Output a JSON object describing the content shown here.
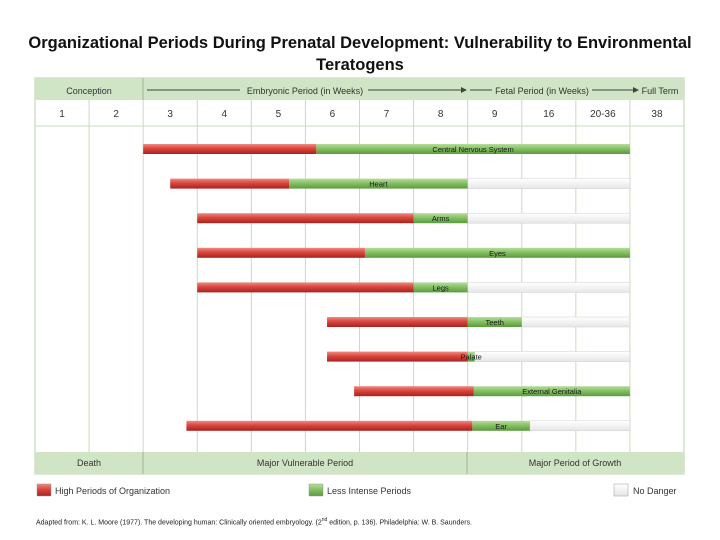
{
  "title": "Organizational Periods During Prenatal Development: Vulnerability to Environmental Teratogens",
  "header": {
    "conception": "Conception",
    "embryonic": "Embryonic Period (in Weeks)",
    "fetal": "Fetal Period (in Weeks)",
    "full_term": "Full Term"
  },
  "footer": {
    "death": "Death",
    "major_vulnerable": "Major Vulnerable Period",
    "major_growth": "Major Period of Growth"
  },
  "legend": {
    "high": "High Periods of Organization",
    "less": "Less Intense Periods",
    "none": "No Danger"
  },
  "source": {
    "before": "Adapted from: K. L. Moore (1977). The developing human: Clinically oriented embryology. (2",
    "sup": "nd",
    "after": " edition, p. 136). Philadelphia: W. B. Saunders."
  },
  "colors": {
    "header_bg": "#d0e4c6",
    "high": "#d33b36",
    "less": "#7fbf5e",
    "none": "#f2f2f2",
    "grid": "#c8dcc0"
  },
  "chart_data": {
    "type": "bar",
    "title": "Organizational Periods During Prenatal Development: Vulnerability to Environmental Teratogens",
    "columns": [
      "1",
      "2",
      "3",
      "4",
      "5",
      "6",
      "7",
      "8",
      "9",
      "16",
      "20-36",
      "38"
    ],
    "rows": [
      {
        "label": "Central Nervous System",
        "high": [
          3,
          6.2
        ],
        "less": [
          6.2,
          38
        ],
        "none": []
      },
      {
        "label": "Heart",
        "high": [
          3.5,
          5.7
        ],
        "less": [
          5.7,
          9
        ],
        "none": [
          9,
          38
        ]
      },
      {
        "label": "Arms",
        "high": [
          4,
          8
        ],
        "less": [
          8,
          9
        ],
        "none": [
          9,
          38
        ]
      },
      {
        "label": "Eyes",
        "high": [
          4,
          7.1
        ],
        "less": [
          7.1,
          38
        ],
        "none": []
      },
      {
        "label": "Legs",
        "high": [
          4,
          8
        ],
        "less": [
          8,
          9
        ],
        "none": [
          9,
          38
        ]
      },
      {
        "label": "Teeth",
        "high": [
          6.4,
          9
        ],
        "less": [
          9,
          16
        ],
        "none": [
          16,
          38
        ]
      },
      {
        "label": "Palate",
        "high": [
          6.4,
          9
        ],
        "less": [
          9,
          9.9
        ],
        "none": [
          9.9,
          38
        ]
      },
      {
        "label": "External Genitalia",
        "high": [
          6.9,
          9.8
        ],
        "less": [
          9.8,
          38
        ],
        "none": []
      },
      {
        "label": "Ear",
        "high": [
          3.8,
          9.6
        ],
        "less": [
          9.6,
          16.6
        ],
        "none": [
          16.6,
          38
        ]
      }
    ]
  }
}
